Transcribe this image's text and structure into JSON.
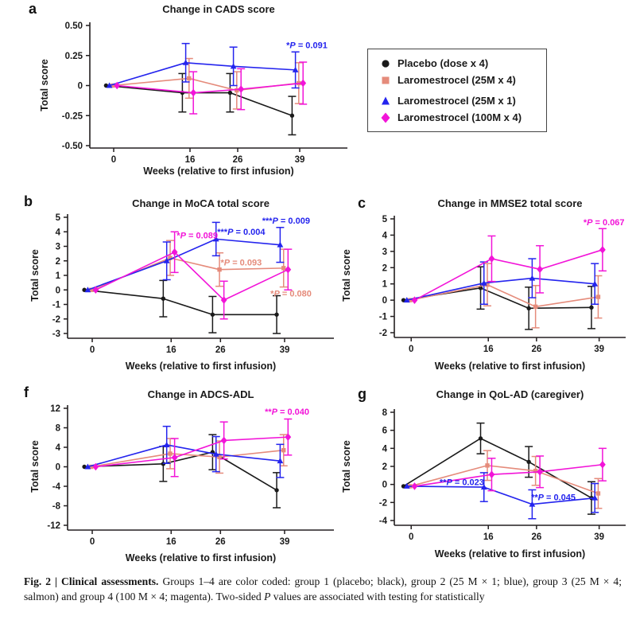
{
  "colors": {
    "black": "#1a1a1a",
    "blue": "#2424ee",
    "salmon": "#e58b7b",
    "magenta": "#f214d8",
    "axis": "#231f20"
  },
  "legend": {
    "items": [
      {
        "label": "Placebo (dose x 4)",
        "marker": "circle",
        "color_key": "black"
      },
      {
        "label": "Laromestrocel (25M x 4)",
        "marker": "square",
        "color_key": "salmon"
      },
      {
        "label": "Laromestrocel (25M x 1)",
        "marker": "triangle",
        "color_key": "blue"
      },
      {
        "label": "Laromestrocel (100M x 4)",
        "marker": "diamond",
        "color_key": "magenta"
      }
    ]
  },
  "caption": {
    "lead": "Fig. 2 | Clinical assessments.",
    "body1": " Groups 1–4 are color coded: group 1 (placebo; black), group 2 (25 M × 1; blue), group 3 (25 M × 4; salmon) and group 4 (100 M × 4; magenta). Two-sided ",
    "p_italic": "P",
    "body2": " values are associated with testing for statistically"
  },
  "chart_data": [
    {
      "panel": "a",
      "type": "line",
      "title": "Change in CADS score",
      "xlabel": "Weeks (relative to first infusion)",
      "ylabel": "Total score",
      "x": [
        0,
        16,
        26,
        39
      ],
      "x_tick_labels": [
        "0",
        "16",
        "26",
        "39"
      ],
      "xlim": [
        -5,
        49
      ],
      "ylim": [
        -0.5,
        0.5
      ],
      "y_ticks": [
        0.5,
        0.25,
        0,
        -0.25,
        -0.5
      ],
      "y_tick_labels": [
        "0.50",
        "0.25",
        "0",
        "-0.25",
        "-0.50"
      ],
      "series": [
        {
          "name": "Placebo (dose x 4)",
          "color_key": "black",
          "marker": "circle",
          "values": [
            0,
            -0.06,
            -0.06,
            -0.25
          ],
          "err": [
            0,
            0.16,
            0.16,
            0.16
          ]
        },
        {
          "name": "Laromestrocel (25M x 4)",
          "color_key": "salmon",
          "marker": "square",
          "values": [
            0,
            0.06,
            -0.04,
            0.02
          ],
          "err": [
            0,
            0.165,
            0.155,
            0.17
          ]
        },
        {
          "name": "Laromestrocel (25M x 1)",
          "color_key": "blue",
          "marker": "triangle",
          "values": [
            0,
            0.19,
            0.16,
            0.13
          ],
          "err": [
            0,
            0.16,
            0.16,
            0.15
          ]
        },
        {
          "name": "Laromestrocel (100M x 4)",
          "color_key": "magenta",
          "marker": "diamond",
          "values": [
            0,
            -0.06,
            -0.03,
            0.02
          ],
          "err": [
            0,
            0.175,
            0.17,
            0.175
          ]
        }
      ],
      "annotations": [
        {
          "text": "*P = 0.091",
          "color_key": "blue",
          "x": 40.5,
          "y": 0.33
        }
      ]
    },
    {
      "panel": "b",
      "type": "line",
      "title": "Change in MoCA total score",
      "xlabel": "Weeks (relative to first infusion)",
      "ylabel": "Total score",
      "x": [
        0,
        16,
        26,
        39
      ],
      "x_tick_labels": [
        "0",
        "16",
        "26",
        "39"
      ],
      "xlim": [
        -5,
        49
      ],
      "ylim": [
        -3,
        5
      ],
      "y_ticks": [
        5,
        4,
        3,
        2,
        1,
        0,
        -1,
        -2,
        -3
      ],
      "y_tick_labels": [
        "5",
        "4",
        "3",
        "2",
        "1",
        "0",
        "-1",
        "-2",
        "-3"
      ],
      "series": [
        {
          "name": "Placebo (dose x 4)",
          "color_key": "black",
          "marker": "circle",
          "values": [
            0,
            -0.6,
            -1.7,
            -1.7
          ],
          "err": [
            0,
            1.25,
            1.25,
            1.3
          ]
        },
        {
          "name": "Laromestrocel (25M x 4)",
          "color_key": "salmon",
          "marker": "square",
          "values": [
            0,
            2.2,
            1.4,
            1.5
          ],
          "err": [
            0,
            1.2,
            1.15,
            1.3
          ]
        },
        {
          "name": "Laromestrocel (25M x 1)",
          "color_key": "blue",
          "marker": "triangle",
          "values": [
            0,
            2.0,
            3.5,
            3.1
          ],
          "err": [
            0,
            1.3,
            1.15,
            1.2
          ]
        },
        {
          "name": "Laromestrocel (100M x 4)",
          "color_key": "magenta",
          "marker": "diamond",
          "values": [
            0,
            2.6,
            -0.7,
            1.4
          ],
          "err": [
            0,
            1.4,
            1.3,
            1.4
          ]
        }
      ],
      "annotations": [
        {
          "text": "*P = 0.089",
          "color_key": "magenta",
          "x": 21.3,
          "y": 3.72
        },
        {
          "text": "***P = 0.004",
          "color_key": "blue",
          "x": 30.2,
          "y": 3.95
        },
        {
          "text": "***P = 0.009",
          "color_key": "blue",
          "x": 39.3,
          "y": 4.72
        },
        {
          "text": "*P = 0.093",
          "color_key": "salmon",
          "x": 30.2,
          "y": 1.85
        },
        {
          "text": "*P = 0.080",
          "color_key": "salmon",
          "x": 40.3,
          "y": -0.28
        }
      ]
    },
    {
      "panel": "c",
      "type": "line",
      "title": "Change in MMSE2 total score",
      "xlabel": "Weeks (relative to first infusion)",
      "ylabel": "Total score",
      "x": [
        0,
        16,
        26,
        39
      ],
      "x_tick_labels": [
        "0",
        "16",
        "26",
        "39"
      ],
      "xlim": [
        -3.5,
        44.5
      ],
      "ylim": [
        -2,
        5
      ],
      "y_ticks": [
        5,
        4,
        3,
        2,
        1,
        0,
        -1,
        -2
      ],
      "y_tick_labels": [
        "5",
        "4",
        "3",
        "2",
        "1",
        "0",
        "-1",
        "-2"
      ],
      "series": [
        {
          "name": "Placebo (dose x 4)",
          "color_key": "black",
          "marker": "circle",
          "values": [
            0,
            0.75,
            -0.5,
            -0.45
          ],
          "err": [
            0,
            1.3,
            1.3,
            1.3
          ]
        },
        {
          "name": "Laromestrocel (25M x 4)",
          "color_key": "salmon",
          "marker": "square",
          "values": [
            0,
            0.95,
            -0.4,
            0.2
          ],
          "err": [
            0,
            1.3,
            1.3,
            1.3
          ]
        },
        {
          "name": "Laromestrocel (25M x 1)",
          "color_key": "blue",
          "marker": "triangle",
          "values": [
            0,
            1.05,
            1.35,
            1.0
          ],
          "err": [
            0,
            1.3,
            1.2,
            1.25
          ]
        },
        {
          "name": "Laromestrocel (100M x 4)",
          "color_key": "magenta",
          "marker": "diamond",
          "values": [
            0,
            2.55,
            1.9,
            3.1
          ],
          "err": [
            0,
            1.4,
            1.45,
            1.3
          ]
        }
      ],
      "annotations": [
        {
          "text": "*P = 0.067",
          "color_key": "magenta",
          "x": 40.0,
          "y": 4.75
        }
      ]
    },
    {
      "panel": "f",
      "type": "line",
      "title": "Change in ADCS-ADL",
      "xlabel": "Weeks (relative to first infusion)",
      "ylabel": "Total score",
      "x": [
        0,
        16,
        26,
        39
      ],
      "x_tick_labels": [
        "0",
        "16",
        "26",
        "39"
      ],
      "xlim": [
        -5,
        49
      ],
      "ylim": [
        -12,
        12
      ],
      "y_ticks": [
        12,
        8,
        4,
        0,
        -4,
        -8,
        -12
      ],
      "y_tick_labels": [
        "12",
        "8",
        "4",
        "0",
        "-4",
        "-8",
        "-12"
      ],
      "series": [
        {
          "name": "Placebo (dose x 4)",
          "color_key": "black",
          "marker": "circle",
          "values": [
            0,
            0.6,
            3.0,
            -4.8
          ],
          "err": [
            0,
            3.6,
            3.6,
            3.6
          ]
        },
        {
          "name": "Laromestrocel (25M x 4)",
          "color_key": "salmon",
          "marker": "square",
          "values": [
            0,
            2.7,
            2.0,
            3.4
          ],
          "err": [
            0,
            3.1,
            3.3,
            3.2
          ]
        },
        {
          "name": "Laromestrocel (25M x 1)",
          "color_key": "blue",
          "marker": "triangle",
          "values": [
            0,
            4.5,
            2.6,
            1.2
          ],
          "err": [
            0,
            3.8,
            3.6,
            3.4
          ]
        },
        {
          "name": "Laromestrocel (100M x 4)",
          "color_key": "magenta",
          "marker": "diamond",
          "values": [
            0,
            1.9,
            5.4,
            6.1
          ],
          "err": [
            0,
            3.9,
            3.8,
            3.7
          ]
        }
      ],
      "annotations": [
        {
          "text": "**P = 0.040",
          "color_key": "magenta",
          "x": 39.5,
          "y": 11.2
        }
      ]
    },
    {
      "panel": "g",
      "type": "line",
      "title": "Change in QoL-AD (caregiver)",
      "xlabel": "Weeks (relative to first infusion)",
      "ylabel": "Total score",
      "x": [
        0,
        16,
        26,
        39
      ],
      "x_tick_labels": [
        "0",
        "16",
        "26",
        "39"
      ],
      "xlim": [
        -3.5,
        44.5
      ],
      "ylim": [
        -4,
        8
      ],
      "y_ticks": [
        8,
        6,
        4,
        2,
        0,
        -2,
        -4
      ],
      "y_tick_labels": [
        "8",
        "6",
        "4",
        "2",
        "0",
        "-2",
        "-4"
      ],
      "series": [
        {
          "name": "Placebo (dose x 4)",
          "color_key": "black",
          "marker": "circle",
          "values": [
            -0.2,
            5.1,
            2.5,
            -1.5
          ],
          "err": [
            0,
            1.7,
            1.7,
            1.8
          ]
        },
        {
          "name": "Laromestrocel (25M x 4)",
          "color_key": "salmon",
          "marker": "square",
          "values": [
            -0.2,
            2.1,
            1.5,
            -1.0
          ],
          "err": [
            0,
            1.65,
            1.6,
            1.65
          ]
        },
        {
          "name": "Laromestrocel (25M x 1)",
          "color_key": "blue",
          "marker": "triangle",
          "values": [
            -0.2,
            -0.3,
            -2.2,
            -1.5
          ],
          "err": [
            0,
            1.6,
            1.6,
            1.6
          ]
        },
        {
          "name": "Laromestrocel (100M x 4)",
          "color_key": "magenta",
          "marker": "diamond",
          "values": [
            -0.2,
            1.1,
            1.4,
            2.2
          ],
          "err": [
            0,
            1.8,
            1.75,
            1.8
          ]
        }
      ],
      "annotations": [
        {
          "text": "**P = 0.023",
          "color_key": "blue",
          "x": 10.5,
          "y": 0.2
        },
        {
          "text": "**P = 0.045",
          "color_key": "blue",
          "x": 29.5,
          "y": -1.5
        }
      ]
    }
  ]
}
